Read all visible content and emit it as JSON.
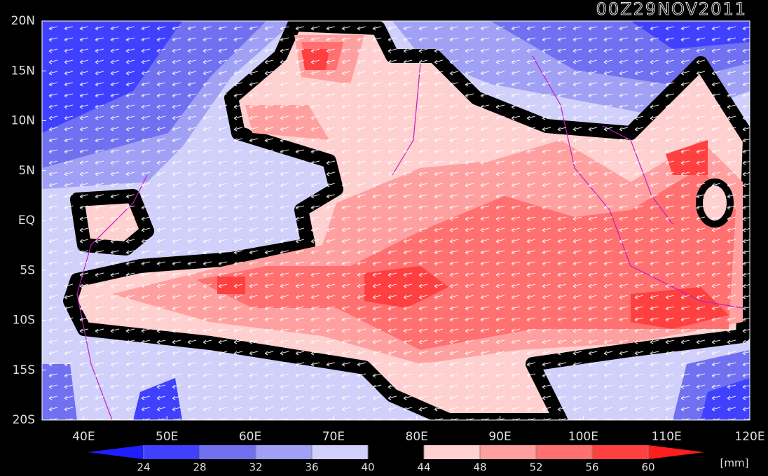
{
  "title": "00Z29NOV2011",
  "map": {
    "xlim": [
      35,
      120
    ],
    "ylim": [
      -20,
      20
    ],
    "xticks": [
      {
        "value": 40,
        "label": "40E"
      },
      {
        "value": 50,
        "label": "50E"
      },
      {
        "value": 60,
        "label": "60E"
      },
      {
        "value": 70,
        "label": "70E"
      },
      {
        "value": 80,
        "label": "80E"
      },
      {
        "value": 90,
        "label": "90E"
      },
      {
        "value": 100,
        "label": "100E"
      },
      {
        "value": 110,
        "label": "110E"
      },
      {
        "value": 120,
        "label": "120E"
      }
    ],
    "yticks": [
      {
        "value": -20,
        "label": "20S"
      },
      {
        "value": -15,
        "label": "15S"
      },
      {
        "value": -10,
        "label": "10S"
      },
      {
        "value": -5,
        "label": "5S"
      },
      {
        "value": 0,
        "label": "EQ"
      },
      {
        "value": 5,
        "label": "5N"
      },
      {
        "value": 10,
        "label": "10N"
      },
      {
        "value": 15,
        "label": "15N"
      },
      {
        "value": 20,
        "label": "20N"
      }
    ]
  },
  "colorbar": {
    "levels": [
      24,
      28,
      32,
      36,
      40,
      44,
      48,
      52,
      56,
      60
    ],
    "colors": [
      "#1e1eff",
      "#4040ff",
      "#7070f0",
      "#a0a0f5",
      "#d0d0fa",
      "#000000",
      "#ffd0d0",
      "#ffa0a0",
      "#ff7070",
      "#ff4040",
      "#ff1e1e"
    ],
    "unit": "[mm]"
  }
}
